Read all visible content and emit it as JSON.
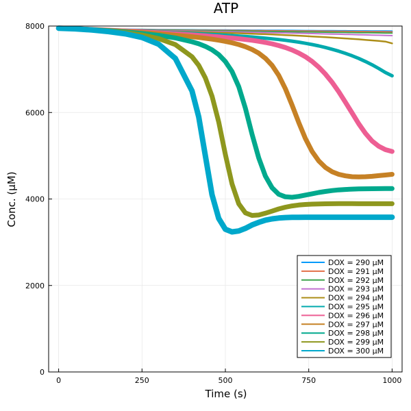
{
  "chart_data": {
    "type": "line",
    "title": "ATP",
    "xlabel": "Time (s)",
    "ylabel": "Conc. (μM)",
    "xlim": [
      -30,
      1030
    ],
    "ylim": [
      0,
      8000
    ],
    "xticks": [
      0,
      250,
      500,
      750,
      1000
    ],
    "yticks": [
      0,
      2000,
      4000,
      6000,
      8000
    ],
    "grid": true,
    "legend_position": "bottom-right",
    "x": [
      0,
      50,
      100,
      150,
      200,
      250,
      300,
      350,
      400,
      420,
      440,
      460,
      480,
      500,
      520,
      540,
      560,
      580,
      600,
      620,
      640,
      660,
      680,
      700,
      720,
      740,
      760,
      780,
      800,
      820,
      840,
      860,
      880,
      900,
      920,
      940,
      960,
      980,
      1000
    ],
    "series": [
      {
        "name": "DOX = 290 μM",
        "color": "#009AFA",
        "width": 2,
        "values": [
          7950,
          7945,
          7938,
          7932,
          7927,
          7922,
          7918,
          7915,
          7913,
          7912,
          7911,
          7910,
          7909,
          7908,
          7907,
          7906,
          7905,
          7904,
          7903,
          7902,
          7901,
          7900,
          7899,
          7898,
          7897,
          7896,
          7895,
          7894,
          7893,
          7892,
          7891,
          7890,
          7889,
          7888,
          7887,
          7886,
          7885,
          7884,
          7883
        ]
      },
      {
        "name": "DOX = 291 μM",
        "color": "#E36F47",
        "width": 2,
        "values": [
          7950,
          7944,
          7936,
          7929,
          7923,
          7917,
          7912,
          7908,
          7905,
          7904,
          7903,
          7902,
          7900,
          7899,
          7898,
          7897,
          7896,
          7895,
          7893,
          7892,
          7891,
          7890,
          7888,
          7887,
          7886,
          7884,
          7883,
          7882,
          7880,
          7879,
          7878,
          7876,
          7875,
          7873,
          7872,
          7870,
          7869,
          7867,
          7865
        ]
      },
      {
        "name": "DOX = 292 μM",
        "color": "#3EA44E",
        "width": 2,
        "values": [
          7950,
          7943,
          7934,
          7926,
          7918,
          7911,
          7905,
          7900,
          7895,
          7893,
          7892,
          7890,
          7888,
          7886,
          7885,
          7883,
          7881,
          7879,
          7877,
          7875,
          7873,
          7871,
          7869,
          7867,
          7865,
          7863,
          7861,
          7859,
          7857,
          7855,
          7853,
          7851,
          7849,
          7847,
          7845,
          7843,
          7841,
          7839,
          7837
        ]
      },
      {
        "name": "DOX = 293 μM",
        "color": "#C371D2",
        "width": 2,
        "values": [
          7950,
          7942,
          7932,
          7922,
          7913,
          7904,
          7896,
          7889,
          7883,
          7880,
          7877,
          7874,
          7871,
          7868,
          7865,
          7862,
          7859,
          7856,
          7853,
          7850,
          7846,
          7843,
          7840,
          7836,
          7833,
          7829,
          7826,
          7822,
          7818,
          7815,
          7811,
          7807,
          7803,
          7799,
          7795,
          7791,
          7787,
          7783,
          7779
        ]
      },
      {
        "name": "DOX = 294 μM",
        "color": "#AC8D18",
        "width": 2.5,
        "values": [
          7950,
          7941,
          7929,
          7917,
          7905,
          7894,
          7884,
          7874,
          7864,
          7860,
          7856,
          7852,
          7847,
          7843,
          7838,
          7833,
          7828,
          7823,
          7817,
          7811,
          7805,
          7798,
          7791,
          7784,
          7776,
          7768,
          7760,
          7751,
          7742,
          7733,
          7723,
          7713,
          7703,
          7692,
          7680,
          7668,
          7655,
          7641,
          7600
        ]
      },
      {
        "name": "DOX = 295 μM",
        "color": "#00A9AD",
        "width": 5,
        "values": [
          7950,
          7940,
          7926,
          7911,
          7896,
          7880,
          7864,
          7847,
          7830,
          7822,
          7814,
          7806,
          7797,
          7788,
          7779,
          7769,
          7758,
          7746,
          7733,
          7719,
          7704,
          7688,
          7670,
          7650,
          7627,
          7601,
          7572,
          7540,
          7504,
          7463,
          7418,
          7368,
          7312,
          7250,
          7180,
          7103,
          7018,
          6925,
          6850
        ]
      },
      {
        "name": "DOX = 296 μM",
        "color": "#ED5E93",
        "width": 7,
        "values": [
          7950,
          7939,
          7923,
          7905,
          7886,
          7865,
          7843,
          7820,
          7795,
          7784,
          7773,
          7761,
          7749,
          7736,
          7722,
          7707,
          7690,
          7670,
          7647,
          7620,
          7588,
          7549,
          7503,
          7446,
          7376,
          7290,
          7183,
          7050,
          6890,
          6700,
          6480,
          6240,
          5990,
          5740,
          5520,
          5340,
          5220,
          5140,
          5100
        ]
      },
      {
        "name": "DOX = 297 μM",
        "color": "#C68125",
        "width": 7,
        "values": [
          7950,
          7938,
          7920,
          7899,
          7876,
          7850,
          7822,
          7790,
          7753,
          7736,
          7717,
          7696,
          7672,
          7645,
          7612,
          7572,
          7522,
          7458,
          7372,
          7254,
          7090,
          6860,
          6550,
          6170,
          5770,
          5400,
          5100,
          4880,
          4730,
          4630,
          4570,
          4535,
          4515,
          4510,
          4515,
          4525,
          4540,
          4555,
          4570
        ]
      },
      {
        "name": "DOX = 298 μM",
        "color": "#00A98D",
        "width": 7,
        "values": [
          7950,
          7937,
          7917,
          7893,
          7864,
          7829,
          7785,
          7724,
          7636,
          7590,
          7530,
          7450,
          7340,
          7180,
          6950,
          6600,
          6100,
          5500,
          4950,
          4530,
          4260,
          4110,
          4050,
          4040,
          4060,
          4090,
          4120,
          4150,
          4175,
          4195,
          4210,
          4220,
          4228,
          4233,
          4236,
          4238,
          4239,
          4240,
          4240
        ]
      },
      {
        "name": "DOX = 299 μM",
        "color": "#8E971E",
        "width": 7,
        "values": [
          7950,
          7936,
          7913,
          7884,
          7846,
          7793,
          7710,
          7570,
          7290,
          7090,
          6800,
          6380,
          5780,
          5030,
          4350,
          3890,
          3680,
          3620,
          3630,
          3670,
          3720,
          3770,
          3810,
          3840,
          3860,
          3873,
          3881,
          3886,
          3889,
          3891,
          3892,
          3892,
          3892,
          3891,
          3890,
          3890,
          3890,
          3890,
          3890
        ]
      },
      {
        "name": "DOX = 300 μM",
        "color": "#00A8CB",
        "width": 8,
        "values": [
          7950,
          7935,
          7908,
          7872,
          7820,
          7735,
          7580,
          7250,
          6500,
          5900,
          5000,
          4100,
          3550,
          3300,
          3240,
          3260,
          3320,
          3400,
          3460,
          3510,
          3540,
          3560,
          3570,
          3575,
          3577,
          3578,
          3578,
          3578,
          3578,
          3578,
          3578,
          3578,
          3578,
          3578,
          3578,
          3578,
          3578,
          3578,
          3578
        ]
      }
    ]
  }
}
